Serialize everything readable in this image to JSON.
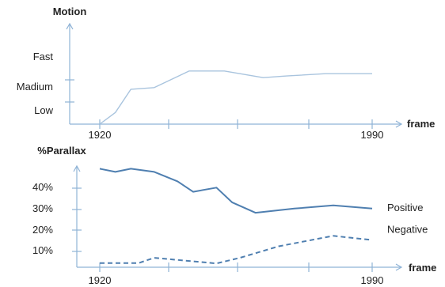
{
  "chart_data": [
    {
      "type": "line",
      "title": "",
      "ylabel": "Motion",
      "xlabel": "frame",
      "x_ticks": [
        "1920",
        "1990"
      ],
      "y_ticks": [
        "Low",
        "Madium",
        "Fast"
      ],
      "xlim": [
        1920,
        1990
      ],
      "ylim": [
        0,
        3
      ],
      "series": [
        {
          "color": "#a9c4de",
          "style": "solid",
          "x": [
            1920,
            1924,
            1928,
            1934,
            1943,
            1952,
            1962,
            1968,
            1978,
            1990
          ],
          "y": [
            0.0,
            0.35,
            1.05,
            1.1,
            1.6,
            1.6,
            1.4,
            1.45,
            1.52,
            1.52
          ]
        }
      ]
    },
    {
      "type": "line",
      "title": "",
      "ylabel": "%Parallax",
      "xlabel": "frame",
      "x_ticks": [
        "1920",
        "1990"
      ],
      "y_ticks": [
        "10%",
        "20%",
        "30%",
        "40%"
      ],
      "xlim": [
        1920,
        1990
      ],
      "ylim": [
        0,
        50
      ],
      "series": [
        {
          "name": "Positive",
          "color": "#4f7fb0",
          "style": "solid",
          "x": [
            1920,
            1924,
            1928,
            1934,
            1940,
            1944,
            1950,
            1954,
            1960,
            1970,
            1980,
            1990
          ],
          "y": [
            47,
            45.5,
            47,
            45.5,
            41,
            36,
            38,
            31,
            26,
            28,
            29.5,
            28
          ]
        },
        {
          "name": "Negative",
          "color": "#4f7fb0",
          "style": "dashed",
          "x": [
            1920,
            1930,
            1934,
            1950,
            1956,
            1966,
            1980,
            1990
          ],
          "y": [
            2,
            2,
            4.5,
            1.8,
            4.5,
            10,
            15,
            13
          ]
        }
      ]
    }
  ]
}
